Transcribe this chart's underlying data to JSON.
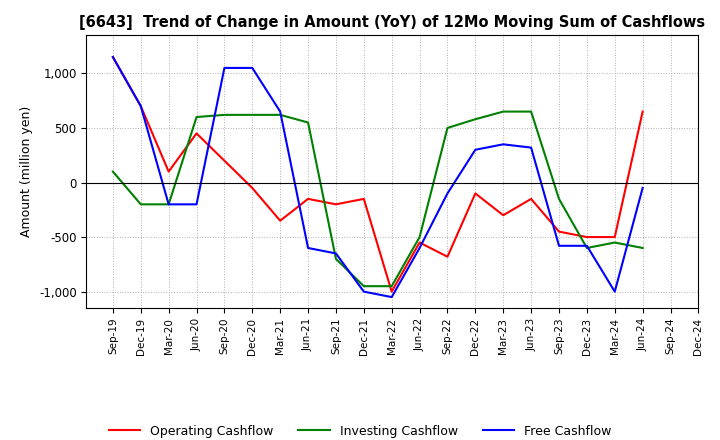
{
  "title": "[6643]  Trend of Change in Amount (YoY) of 12Mo Moving Sum of Cashflows",
  "ylabel": "Amount (million yen)",
  "ylim": [
    -1150,
    1350
  ],
  "yticks": [
    -1000,
    -500,
    0,
    500,
    1000
  ],
  "x_labels": [
    "Sep-19",
    "Dec-19",
    "Mar-20",
    "Jun-20",
    "Sep-20",
    "Dec-20",
    "Mar-21",
    "Jun-21",
    "Sep-21",
    "Dec-21",
    "Mar-22",
    "Jun-22",
    "Sep-22",
    "Dec-22",
    "Mar-23",
    "Jun-23",
    "Sep-23",
    "Dec-23",
    "Mar-24",
    "Jun-24",
    "Sep-24",
    "Dec-24"
  ],
  "operating": [
    1150,
    700,
    100,
    450,
    200,
    -50,
    -350,
    -150,
    -200,
    -150,
    -1000,
    -550,
    -680,
    -100,
    -300,
    -150,
    -450,
    -500,
    -500,
    650,
    null,
    null
  ],
  "investing": [
    100,
    -200,
    -200,
    600,
    620,
    620,
    620,
    550,
    -700,
    -950,
    -950,
    -500,
    500,
    580,
    650,
    650,
    -150,
    -600,
    -550,
    -600,
    null,
    null
  ],
  "free": [
    1150,
    700,
    -200,
    -200,
    1050,
    1050,
    650,
    -600,
    -650,
    -1000,
    -1050,
    -600,
    -100,
    300,
    350,
    320,
    -580,
    -580,
    -1000,
    -50,
    null,
    null
  ],
  "operating_color": "#ff0000",
  "investing_color": "#008000",
  "free_color": "#0000ff",
  "background_color": "#ffffff",
  "grid_color": "#b0b0b0"
}
